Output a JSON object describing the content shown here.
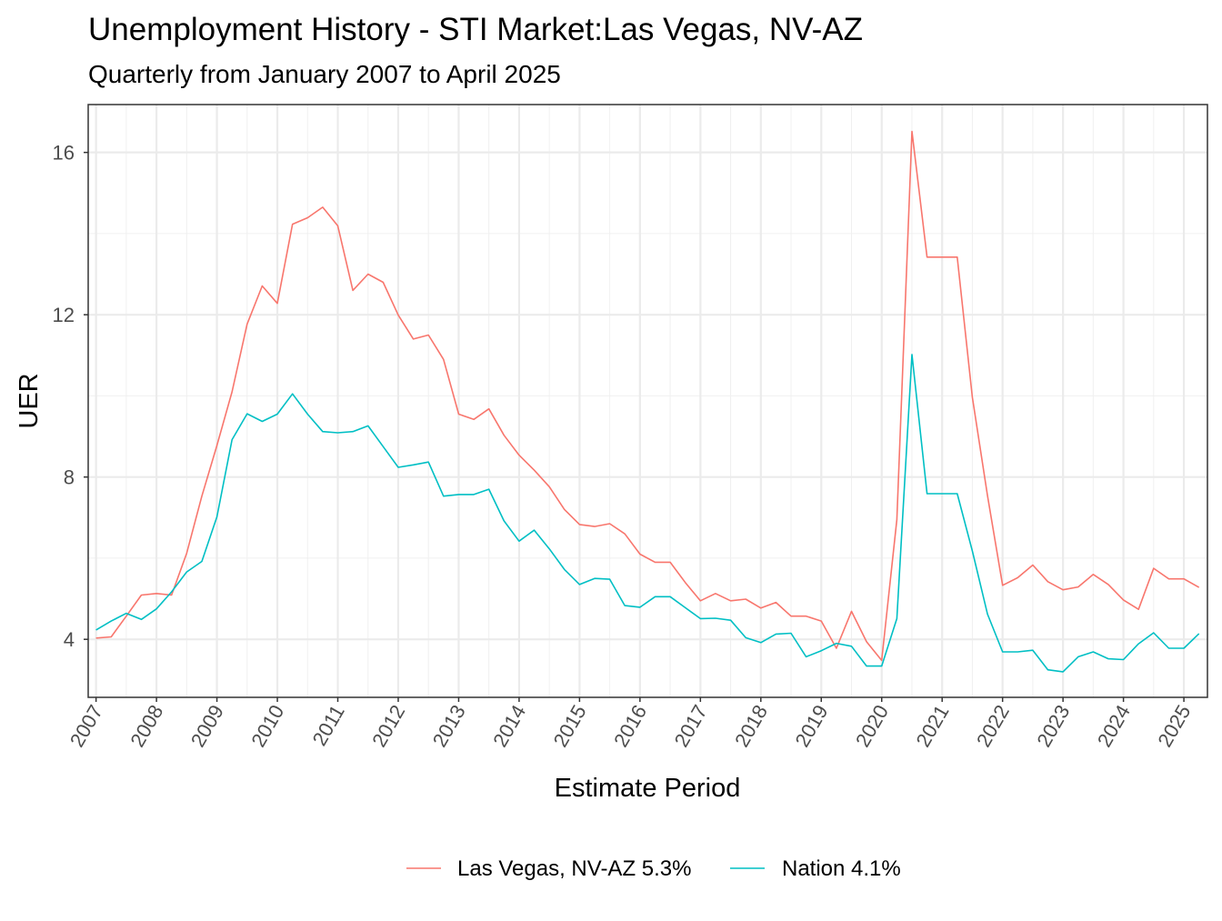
{
  "chart_data": {
    "type": "line",
    "title": "Unemployment History - STI Market:Las Vegas, NV-AZ",
    "subtitle": "Quarterly from January 2007 to April 2025",
    "xlabel": "Estimate Period",
    "ylabel": "UER",
    "xlim": [
      2006.87,
      2025.39
    ],
    "ylim": [
      2.57,
      17.18
    ],
    "x_ticks": [
      "2007",
      "2008",
      "2009",
      "2010",
      "2011",
      "2012",
      "2013",
      "2014",
      "2015",
      "2016",
      "2017",
      "2018",
      "2019",
      "2020",
      "2021",
      "2022",
      "2023",
      "2024",
      "2025"
    ],
    "y_ticks": [
      4,
      8,
      12,
      16
    ],
    "y_minor": [
      6,
      10,
      14
    ],
    "grid": true,
    "legend_position": "bottom",
    "x_start": 2007,
    "x_step": 0.25,
    "series": [
      {
        "name": "Las Vegas, NV-AZ 5.3%",
        "color": "#F8766D",
        "values": [
          4.03,
          4.06,
          4.57,
          5.09,
          5.13,
          5.09,
          6.12,
          7.53,
          8.78,
          10.1,
          11.77,
          12.71,
          12.28,
          14.23,
          14.39,
          14.65,
          14.19,
          12.6,
          13.0,
          12.8,
          11.99,
          11.4,
          11.5,
          10.9,
          9.55,
          9.42,
          9.68,
          9.03,
          8.54,
          8.17,
          7.76,
          7.2,
          6.83,
          6.78,
          6.85,
          6.6,
          6.1,
          5.9,
          5.9,
          5.4,
          4.95,
          5.13,
          4.95,
          4.99,
          4.77,
          4.91,
          4.57,
          4.57,
          4.45,
          3.78,
          4.69,
          3.94,
          3.48,
          6.95,
          16.52,
          13.42,
          13.42,
          13.42,
          9.97,
          7.54,
          5.33,
          5.52,
          5.83,
          5.42,
          5.22,
          5.29,
          5.6,
          5.35,
          4.97,
          4.74,
          5.75,
          5.49,
          5.49,
          5.28
        ]
      },
      {
        "name": "Nation 4.1%",
        "color": "#00BFC4",
        "values": [
          4.23,
          4.45,
          4.64,
          4.49,
          4.75,
          5.17,
          5.66,
          5.92,
          7.02,
          8.92,
          9.56,
          9.37,
          9.55,
          10.05,
          9.55,
          9.12,
          9.09,
          9.12,
          9.26,
          8.75,
          8.24,
          8.3,
          8.37,
          7.53,
          7.57,
          7.57,
          7.7,
          6.92,
          6.42,
          6.69,
          6.23,
          5.72,
          5.35,
          5.5,
          5.48,
          4.83,
          4.79,
          5.05,
          5.05,
          4.78,
          4.51,
          4.52,
          4.47,
          4.04,
          3.92,
          4.13,
          4.15,
          3.57,
          3.72,
          3.9,
          3.83,
          3.34,
          3.34,
          4.51,
          11.02,
          7.59,
          7.59,
          7.59,
          6.18,
          4.62,
          3.69,
          3.69,
          3.73,
          3.25,
          3.2,
          3.57,
          3.69,
          3.52,
          3.5,
          3.89,
          4.16,
          3.78,
          3.78,
          4.14
        ]
      }
    ]
  }
}
